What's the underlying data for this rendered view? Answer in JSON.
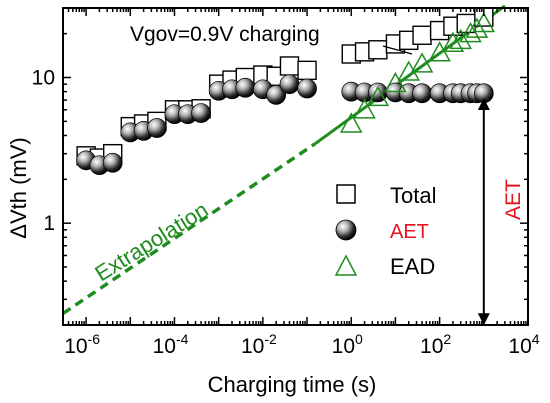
{
  "chart_data": {
    "type": "scatter",
    "x_scale": "log",
    "y_scale": "log",
    "xlim": [
      3e-07,
      10000
    ],
    "ylim": [
      0.2,
      30
    ],
    "xlabel": "Charging time (s)",
    "ylabel": "ΔVth (mV)",
    "x_ticks": [
      {
        "value": 1e-06,
        "base": "10",
        "exp": "-6"
      },
      {
        "value": 0.0001,
        "base": "10",
        "exp": "-4"
      },
      {
        "value": 0.01,
        "base": "10",
        "exp": "-2"
      },
      {
        "value": 1,
        "base": "10",
        "exp": "0"
      },
      {
        "value": 100,
        "base": "10",
        "exp": "2"
      },
      {
        "value": 10000,
        "base": "10",
        "exp": "4"
      }
    ],
    "y_ticks": [
      {
        "value": 1,
        "label": "1"
      },
      {
        "value": 10,
        "label": "10"
      }
    ],
    "annotation_title": "Vgov=0.9V charging",
    "extrapolation_label": "Extrapolation",
    "aet_arrow_label": "AET",
    "legend_placement": "right",
    "series": [
      {
        "name": "Total",
        "marker": "open-square",
        "color": "#000000",
        "x": [
          1e-06,
          2e-06,
          4e-06,
          1e-05,
          2e-05,
          4e-05,
          0.0001,
          0.0002,
          0.0004,
          0.001,
          0.002,
          0.004,
          0.01,
          0.02,
          0.04,
          0.1,
          1,
          2,
          4,
          10,
          20,
          40,
          100,
          200,
          400,
          1000
        ],
        "y": [
          2.9,
          2.8,
          3.0,
          4.6,
          4.8,
          5.0,
          6.0,
          6.0,
          6.1,
          9.0,
          9.6,
          10.0,
          10.4,
          10.2,
          12.0,
          11.2,
          14.5,
          15.0,
          15.5,
          17.0,
          18.0,
          19.5,
          21.0,
          22.5,
          23.5,
          26.0
        ]
      },
      {
        "name": "AET",
        "marker": "shaded-sphere",
        "color": "#555555",
        "legend_text_color": "#e8141c",
        "x": [
          1e-06,
          2e-06,
          4e-06,
          1e-05,
          2e-05,
          4e-05,
          0.0001,
          0.0002,
          0.0004,
          0.001,
          0.002,
          0.004,
          0.01,
          0.02,
          0.04,
          0.1,
          1,
          2,
          4,
          10,
          20,
          40,
          100,
          200,
          300,
          500,
          700,
          1000
        ],
        "y": [
          2.7,
          2.5,
          2.6,
          4.2,
          4.3,
          4.5,
          5.6,
          5.6,
          5.7,
          8.1,
          8.3,
          8.5,
          8.3,
          7.6,
          9.0,
          8.4,
          8.0,
          7.9,
          7.9,
          7.9,
          7.8,
          7.8,
          7.8,
          7.8,
          7.8,
          7.8,
          7.8,
          7.8
        ]
      },
      {
        "name": "EAD",
        "marker": "open-triangle",
        "color": "#1f8c1f",
        "x": [
          1,
          2,
          4,
          10,
          20,
          40,
          100,
          200,
          300,
          500,
          700,
          1000
        ],
        "y": [
          4.8,
          6.0,
          7.3,
          9.1,
          10.9,
          12.4,
          14.8,
          17.2,
          18.0,
          20.0,
          21.5,
          23.5
        ]
      }
    ],
    "fit_line": {
      "color": "#1f8c1f",
      "solid": {
        "x": [
          0.15,
          3000
        ],
        "y": [
          3.5,
          31
        ]
      },
      "dashed": {
        "x": [
          3e-07,
          0.15
        ],
        "y": [
          0.24,
          3.5
        ]
      }
    },
    "aet_arrow": {
      "x": 1000,
      "y_from": 7.8,
      "y_to": 0.2
    }
  }
}
